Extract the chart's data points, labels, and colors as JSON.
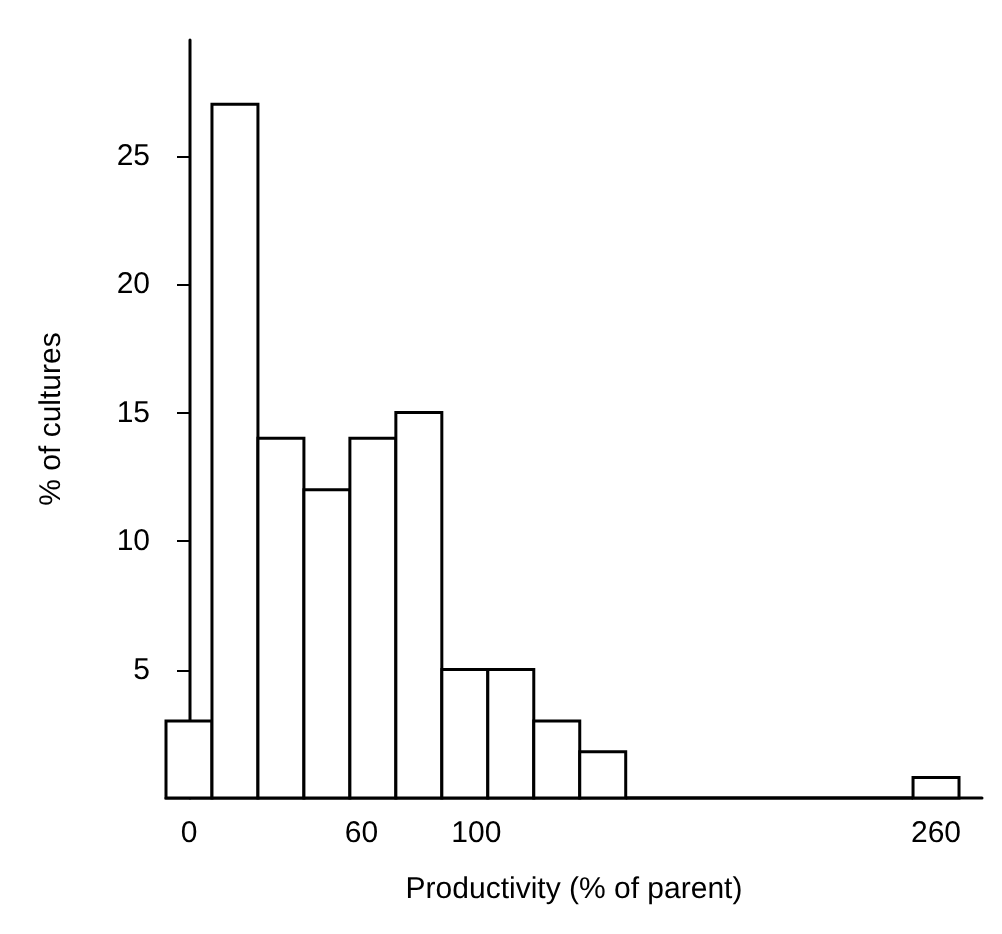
{
  "chart_data": {
    "type": "histogram",
    "xlabel": "Productivity (% of parent)",
    "ylabel": "% of cultures",
    "bins": [
      -8,
      8,
      24,
      40,
      56,
      72,
      88,
      104,
      120,
      136,
      152,
      252,
      268
    ],
    "values": [
      3,
      27,
      14,
      12,
      14,
      15,
      5,
      5,
      3,
      1.8,
      0,
      0.8
    ],
    "color": "#ffffff",
    "xlim": [
      -8,
      276
    ],
    "xticks": [
      0,
      60,
      100,
      260
    ],
    "ylim": [
      0,
      29.5
    ],
    "yticks": [
      5,
      10,
      15,
      20,
      25
    ],
    "grid": false
  }
}
